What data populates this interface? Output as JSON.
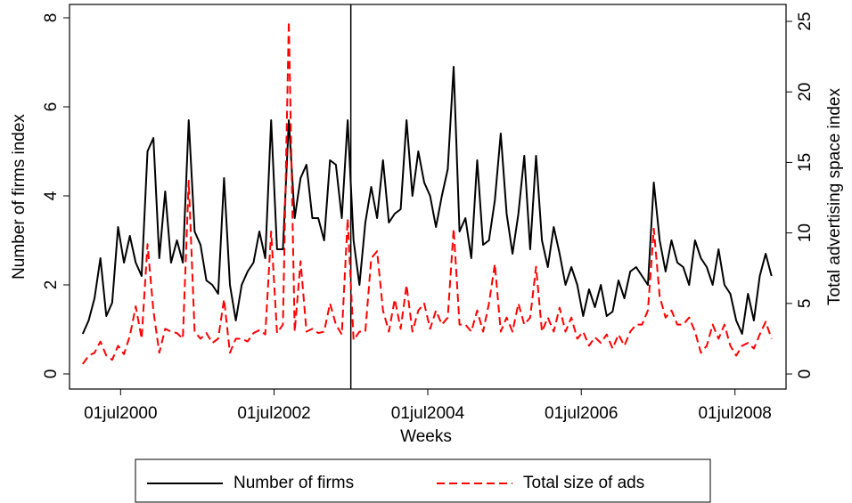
{
  "chart_data": {
    "type": "line",
    "x_label": "Weeks",
    "y_label": "Number of firms index",
    "y2_label": "Total advertising space index",
    "x": [
      "2000-01-03",
      "2000-01-31",
      "2000-02-28",
      "2000-03-27",
      "2000-04-24",
      "2000-05-22",
      "2000-06-19",
      "2000-07-17",
      "2000-08-14",
      "2000-09-11",
      "2000-10-09",
      "2000-11-06",
      "2000-12-04",
      "2001-01-01",
      "2001-01-29",
      "2001-02-26",
      "2001-03-26",
      "2001-04-23",
      "2001-05-21",
      "2001-06-18",
      "2001-07-16",
      "2001-08-13",
      "2001-09-10",
      "2001-10-08",
      "2001-11-05",
      "2001-12-03",
      "2001-12-31",
      "2002-01-28",
      "2002-02-25",
      "2002-03-25",
      "2002-04-22",
      "2002-05-20",
      "2002-06-17",
      "2002-07-15",
      "2002-08-12",
      "2002-09-09",
      "2002-10-07",
      "2002-11-04",
      "2002-12-02",
      "2002-12-30",
      "2003-01-27",
      "2003-02-24",
      "2003-03-24",
      "2003-04-21",
      "2003-05-19",
      "2003-06-16",
      "2003-07-14",
      "2003-08-11",
      "2003-09-08",
      "2003-10-06",
      "2003-11-03",
      "2003-12-01",
      "2003-12-29",
      "2004-01-26",
      "2004-02-23",
      "2004-03-22",
      "2004-04-19",
      "2004-05-17",
      "2004-06-14",
      "2004-07-12",
      "2004-08-09",
      "2004-09-06",
      "2004-10-04",
      "2004-11-01",
      "2004-11-29",
      "2004-12-27",
      "2005-01-24",
      "2005-02-21",
      "2005-03-21",
      "2005-04-18",
      "2005-05-16",
      "2005-06-13",
      "2005-07-11",
      "2005-08-08",
      "2005-09-05",
      "2005-10-03",
      "2005-10-31",
      "2005-11-28",
      "2005-12-26",
      "2006-01-23",
      "2006-02-20",
      "2006-03-20",
      "2006-04-17",
      "2006-05-15",
      "2006-06-12",
      "2006-07-10",
      "2006-08-07",
      "2006-09-04",
      "2006-10-02",
      "2006-10-30",
      "2006-11-27",
      "2006-12-25",
      "2007-01-22",
      "2007-02-19",
      "2007-03-19",
      "2007-04-16",
      "2007-05-14",
      "2007-06-11",
      "2007-07-09",
      "2007-08-06",
      "2007-09-03",
      "2007-10-01",
      "2007-10-29",
      "2007-11-26",
      "2007-12-24",
      "2008-01-21",
      "2008-02-18",
      "2008-03-17",
      "2008-04-14",
      "2008-05-12",
      "2008-06-09",
      "2008-07-07",
      "2008-08-04",
      "2008-09-01",
      "2008-09-29",
      "2008-10-27",
      "2008-11-24",
      "2008-12-22"
    ],
    "series": [
      {
        "name": "Number of firms",
        "color": "#000000",
        "dash": false,
        "axis": "y",
        "values": [
          0.9,
          1.2,
          1.7,
          2.6,
          1.3,
          1.6,
          3.3,
          2.5,
          3.1,
          2.5,
          2.2,
          5.0,
          5.3,
          2.6,
          4.1,
          2.5,
          3.0,
          2.5,
          5.7,
          3.2,
          2.9,
          2.1,
          2.0,
          1.8,
          4.4,
          2.0,
          1.2,
          2.0,
          2.3,
          2.5,
          3.2,
          2.6,
          5.7,
          2.8,
          2.8,
          5.7,
          3.5,
          4.4,
          4.7,
          3.5,
          3.5,
          3.0,
          4.8,
          4.7,
          3.5,
          5.7,
          3.0,
          2.0,
          3.4,
          4.2,
          3.5,
          4.8,
          3.4,
          3.6,
          3.7,
          5.7,
          4.0,
          5.0,
          4.3,
          4.0,
          3.3,
          4.0,
          4.6,
          6.9,
          3.2,
          3.5,
          2.6,
          4.8,
          2.9,
          3.0,
          3.9,
          5.4,
          3.6,
          2.7,
          3.6,
          4.9,
          2.8,
          4.9,
          3.0,
          2.4,
          3.3,
          2.7,
          2.0,
          2.4,
          2.0,
          1.3,
          1.9,
          1.5,
          2.0,
          1.3,
          1.4,
          2.1,
          1.7,
          2.3,
          2.4,
          2.2,
          2.0,
          4.3,
          3.0,
          2.3,
          3.0,
          2.5,
          2.4,
          2.0,
          3.0,
          2.6,
          2.4,
          2.0,
          2.8,
          2.0,
          1.8,
          1.2,
          0.9,
          1.8,
          1.2,
          2.2,
          2.7,
          2.2
        ]
      },
      {
        "name": "Total size of ads",
        "color": "#ff0000",
        "dash": true,
        "axis": "y2",
        "values": [
          0.7,
          1.3,
          1.5,
          2.3,
          1.3,
          1.0,
          2.0,
          1.4,
          2.7,
          4.8,
          2.5,
          9.2,
          4.5,
          1.5,
          3.2,
          3.0,
          2.9,
          2.5,
          13.7,
          3.0,
          2.5,
          2.9,
          2.2,
          2.5,
          5.3,
          1.5,
          2.5,
          2.5,
          2.3,
          2.9,
          3.1,
          2.8,
          10.1,
          2.9,
          3.5,
          25.0,
          3.0,
          8.0,
          3.0,
          3.2,
          2.9,
          3.0,
          5.0,
          3.5,
          2.8,
          11.0,
          2.4,
          3.0,
          3.0,
          8.2,
          8.7,
          4.5,
          3.0,
          5.3,
          3.2,
          6.3,
          3.0,
          4.5,
          5.0,
          3.2,
          4.5,
          3.5,
          4.0,
          10.3,
          3.5,
          3.5,
          3.0,
          4.5,
          3.0,
          5.0,
          7.8,
          3.0,
          4.0,
          3.0,
          5.0,
          3.5,
          4.0,
          7.6,
          3.0,
          4.0,
          3.0,
          4.7,
          3.0,
          4.0,
          2.5,
          3.0,
          2.0,
          2.6,
          2.2,
          2.8,
          1.8,
          2.8,
          2.0,
          3.0,
          3.5,
          3.5,
          4.5,
          10.3,
          5.5,
          4.0,
          4.5,
          3.5,
          3.5,
          4.0,
          3.0,
          1.5,
          2.0,
          3.5,
          2.5,
          3.5,
          2.0,
          1.3,
          2.0,
          2.2,
          1.8,
          2.8,
          3.7,
          2.5
        ]
      }
    ],
    "vline": "2003-07-01",
    "xlim": [
      "1999-11-01",
      "2009-03-01"
    ],
    "xticks": [
      {
        "value": "2000-07-01",
        "label": "01jul2000"
      },
      {
        "value": "2002-07-01",
        "label": "01jul2002"
      },
      {
        "value": "2004-07-01",
        "label": "01jul2004"
      },
      {
        "value": "2006-07-01",
        "label": "01jul2006"
      },
      {
        "value": "2008-07-01",
        "label": "01jul2008"
      }
    ],
    "ylim": [
      -0.34,
      8.3
    ],
    "yticks": [
      0,
      2,
      4,
      6,
      8
    ],
    "y2lim": [
      -1.07,
      26.2
    ],
    "y2ticks": [
      0,
      5,
      10,
      15,
      20,
      25
    ],
    "legend": "bottom"
  }
}
